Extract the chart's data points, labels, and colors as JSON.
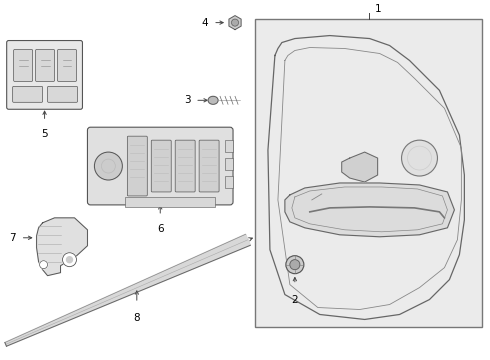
{
  "background_color": "#ffffff",
  "line_color": "#444444",
  "label_color": "#000000",
  "fig_width": 4.9,
  "fig_height": 3.6,
  "dpi": 100,
  "panel_bg": "#ebebeb",
  "part_bg": "#f5f5f5"
}
